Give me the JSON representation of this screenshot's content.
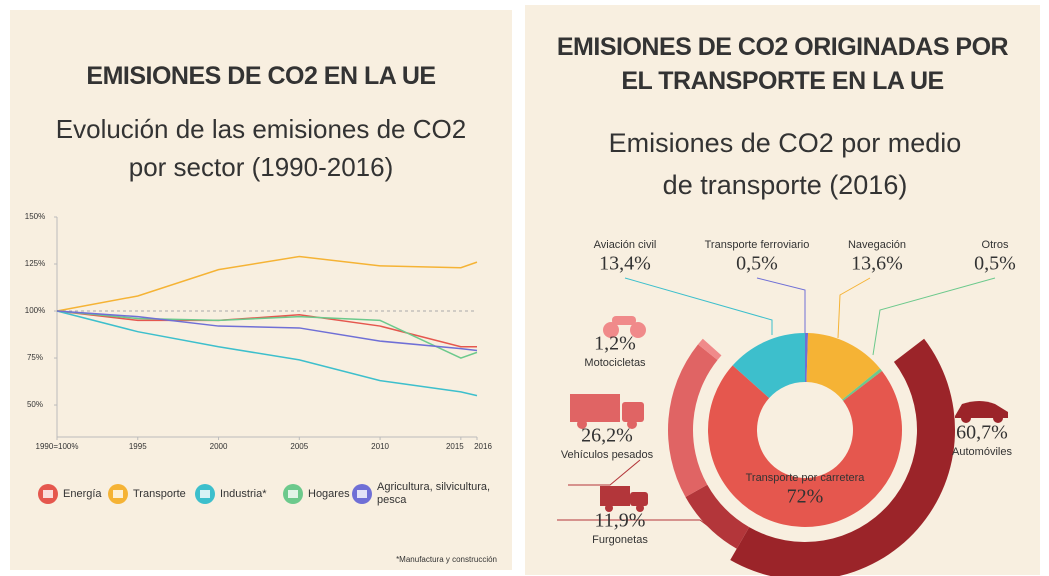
{
  "chart_data": [
    {
      "type": "line",
      "title": "EMISIONES DE CO2 EN LA UE",
      "subtitle": "Evolución de las emisiones de CO2 por sector (1990-2016)",
      "x": [
        1990,
        1995,
        2000,
        2005,
        2010,
        2015,
        2016
      ],
      "xticks": [
        {
          "value": 1990,
          "label": "1990=100%"
        },
        1995,
        2000,
        2005,
        2010,
        2015,
        2016
      ],
      "xlim": [
        1990,
        2016
      ],
      "ylim": [
        33,
        150
      ],
      "yticks": [
        {
          "value": 50,
          "label": "50%"
        },
        {
          "value": 75,
          "label": "75%"
        },
        {
          "value": 100,
          "label": "100%"
        },
        {
          "value": 125,
          "label": "125%"
        },
        {
          "value": 150,
          "label": "150%"
        }
      ],
      "series": [
        {
          "name": "Energía",
          "color": "#e5574e",
          "values": [
            100,
            95,
            95,
            98,
            92,
            81,
            81
          ]
        },
        {
          "name": "Transporte",
          "color": "#f5b335",
          "values": [
            100,
            108,
            122,
            129,
            124,
            123,
            126
          ]
        },
        {
          "name": "Industria*",
          "color": "#3dbfcc",
          "values": [
            100,
            89,
            81,
            74,
            63,
            57,
            55
          ]
        },
        {
          "name": "Hogares",
          "color": "#6cc98c",
          "values": [
            100,
            96,
            95,
            97,
            95,
            75,
            78
          ]
        },
        {
          "name": "Agricultura, silvicultura, pesca",
          "color": "#6f6fd6",
          "values": [
            100,
            97,
            92,
            91,
            84,
            80,
            79
          ]
        }
      ],
      "footnote": "*Manufactura y construcción"
    },
    {
      "type": "donut",
      "title": "EMISIONES DE CO2 ORIGINADAS POR EL TRANSPORTE EN LA UE",
      "subtitle": "Emisiones de CO2 por medio de transporte (2016)",
      "categories": [
        "Transporte ferroviario",
        "Navegación",
        "Otros",
        "Transporte por carretera",
        "Aviación civil"
      ],
      "values": [
        0.5,
        13.6,
        0.5,
        72,
        13.4
      ],
      "value_labels": [
        "0,5%",
        "13,6%",
        "0,5%",
        "72%",
        "13,4%"
      ],
      "colors": [
        "#6f6fd6",
        "#f5b335",
        "#6cc98c",
        "#e5574e",
        "#3dbfcc"
      ],
      "breakdown": {
        "categories": [
          "Automóviles",
          "Furgonetas",
          "Vehículos pesados",
          "Motocicletas"
        ],
        "values": [
          60.7,
          11.9,
          26.2,
          1.2
        ],
        "value_labels": [
          "60,7%",
          "11,9%",
          "26,2%",
          "1,2%"
        ],
        "colors": [
          "#9b2429",
          "#b3363a",
          "#e06464",
          "#f08a8a"
        ]
      }
    }
  ]
}
